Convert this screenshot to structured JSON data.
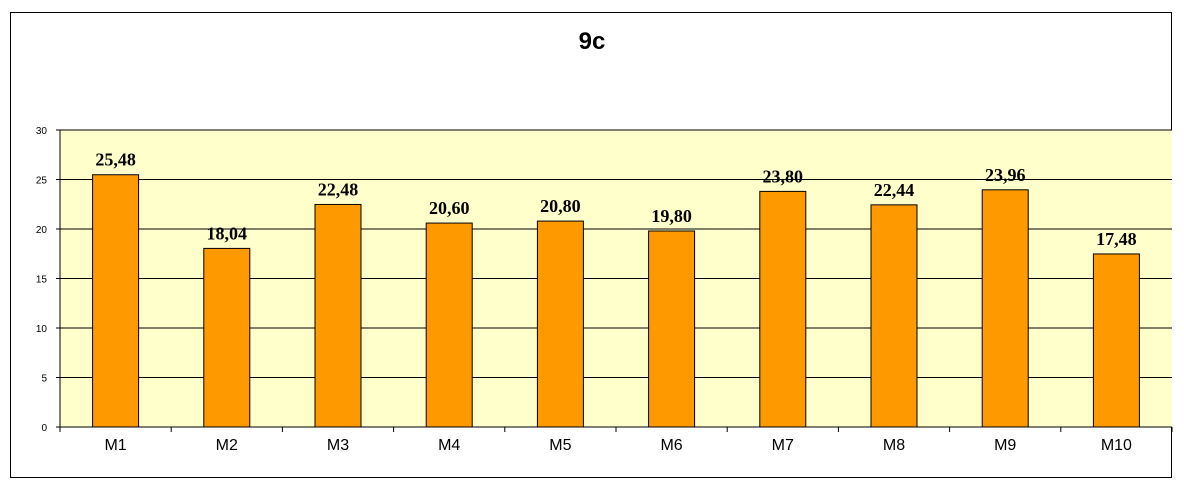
{
  "chart_data": {
    "type": "bar",
    "title": "9c",
    "categories": [
      "M1",
      "M2",
      "M3",
      "M4",
      "M5",
      "M6",
      "M7",
      "M8",
      "M9",
      "M10"
    ],
    "values": [
      25.48,
      18.04,
      22.48,
      20.6,
      20.8,
      19.8,
      23.8,
      22.44,
      23.96,
      17.48
    ],
    "data_labels": [
      "25,48",
      "18,04",
      "22,48",
      "20,60",
      "20,80",
      "19,80",
      "23,80",
      "22,44",
      "23,96",
      "17,48"
    ],
    "ylim": [
      0,
      30
    ],
    "yticks": [
      0,
      5,
      10,
      15,
      20,
      25,
      30
    ],
    "xlabel": "",
    "ylabel": "",
    "grid": true,
    "colors": {
      "bar": "#FF9900",
      "plot_background": "#FFFFCC",
      "grid": "#000000"
    }
  }
}
